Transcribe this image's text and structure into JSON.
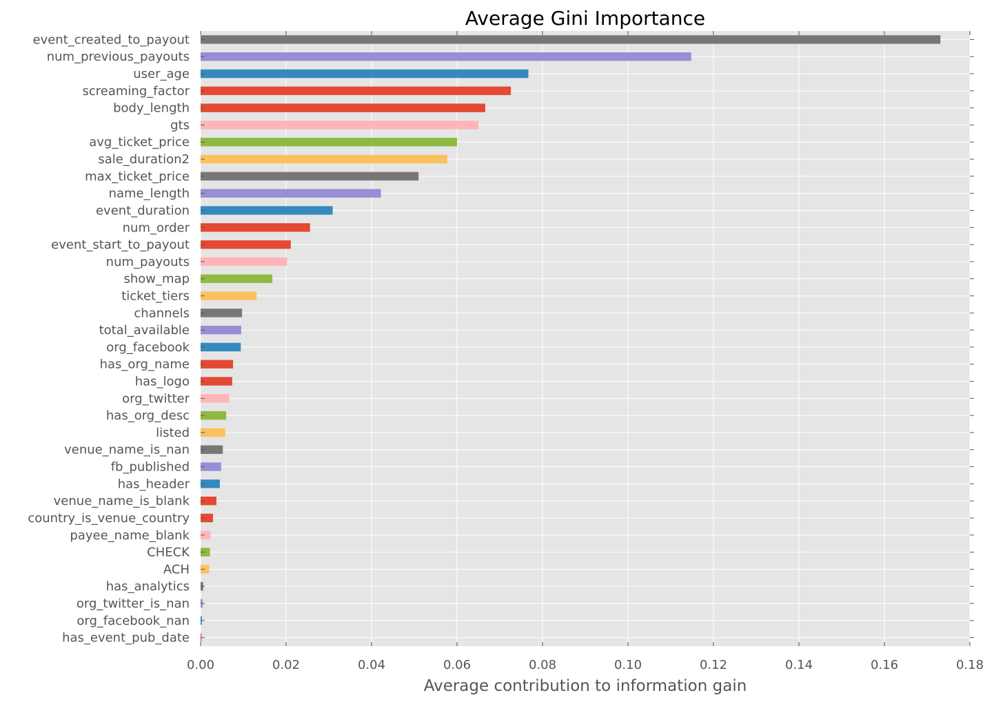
{
  "chart_data": {
    "type": "bar",
    "orientation": "horizontal",
    "title": "Average Gini Importance",
    "xlabel": "Average contribution to information gain",
    "ylabel": "",
    "xlim": [
      0,
      0.18
    ],
    "xticks": [
      0.0,
      0.02,
      0.04,
      0.06,
      0.08,
      0.1,
      0.12,
      0.14,
      0.16,
      0.18
    ],
    "xtick_labels": [
      "0.00",
      "0.02",
      "0.04",
      "0.06",
      "0.08",
      "0.10",
      "0.12",
      "0.14",
      "0.16",
      "0.18"
    ],
    "grid": true,
    "legend": "none",
    "background_color": "#e5e5e5",
    "grid_color": "#ffffff",
    "palette": [
      "#e24a33",
      "#348abd",
      "#988ed5",
      "#777777",
      "#fbc15e",
      "#8eba42",
      "#ffb5b8"
    ],
    "bars": [
      {
        "label": "event_created_to_payout",
        "value": 0.1731,
        "color": "#777777"
      },
      {
        "label": "num_previous_payouts",
        "value": 0.1148,
        "color": "#988ed5"
      },
      {
        "label": "user_age",
        "value": 0.0767,
        "color": "#348abd"
      },
      {
        "label": "screaming_factor",
        "value": 0.0726,
        "color": "#e24a33"
      },
      {
        "label": "body_length",
        "value": 0.0666,
        "color": "#e24a33"
      },
      {
        "label": "gts",
        "value": 0.065,
        "color": "#ffb5b8"
      },
      {
        "label": "avg_ticket_price",
        "value": 0.06,
        "color": "#8eba42"
      },
      {
        "label": "sale_duration2",
        "value": 0.0577,
        "color": "#fbc15e"
      },
      {
        "label": "max_ticket_price",
        "value": 0.051,
        "color": "#777777"
      },
      {
        "label": "name_length",
        "value": 0.0422,
        "color": "#988ed5"
      },
      {
        "label": "event_duration",
        "value": 0.0309,
        "color": "#348abd"
      },
      {
        "label": "num_order",
        "value": 0.0256,
        "color": "#e24a33"
      },
      {
        "label": "event_start_to_payout",
        "value": 0.0211,
        "color": "#e24a33"
      },
      {
        "label": "num_payouts",
        "value": 0.0202,
        "color": "#ffb5b8"
      },
      {
        "label": "show_map",
        "value": 0.0168,
        "color": "#8eba42"
      },
      {
        "label": "ticket_tiers",
        "value": 0.0131,
        "color": "#fbc15e"
      },
      {
        "label": "channels",
        "value": 0.0097,
        "color": "#777777"
      },
      {
        "label": "total_available",
        "value": 0.0095,
        "color": "#988ed5"
      },
      {
        "label": "org_facebook",
        "value": 0.0094,
        "color": "#348abd"
      },
      {
        "label": "has_org_name",
        "value": 0.0076,
        "color": "#e24a33"
      },
      {
        "label": "has_logo",
        "value": 0.0074,
        "color": "#e24a33"
      },
      {
        "label": "org_twitter",
        "value": 0.0067,
        "color": "#ffb5b8"
      },
      {
        "label": "has_org_desc",
        "value": 0.006,
        "color": "#8eba42"
      },
      {
        "label": "listed",
        "value": 0.0058,
        "color": "#fbc15e"
      },
      {
        "label": "venue_name_is_nan",
        "value": 0.0052,
        "color": "#777777"
      },
      {
        "label": "fb_published",
        "value": 0.0048,
        "color": "#988ed5"
      },
      {
        "label": "has_header",
        "value": 0.0045,
        "color": "#348abd"
      },
      {
        "label": "venue_name_is_blank",
        "value": 0.0037,
        "color": "#e24a33"
      },
      {
        "label": "country_is_venue_country",
        "value": 0.0029,
        "color": "#e24a33"
      },
      {
        "label": "payee_name_blank",
        "value": 0.0023,
        "color": "#ffb5b8"
      },
      {
        "label": "CHECK",
        "value": 0.0022,
        "color": "#8eba42"
      },
      {
        "label": "ACH",
        "value": 0.002,
        "color": "#fbc15e"
      },
      {
        "label": "has_analytics",
        "value": 0.0006,
        "color": "#777777"
      },
      {
        "label": "org_twitter_is_nan",
        "value": 0.0005,
        "color": "#988ed5"
      },
      {
        "label": "org_facebook_nan",
        "value": 0.0003,
        "color": "#348abd"
      },
      {
        "label": "has_event_pub_date",
        "value": 0.0002,
        "color": "#e24a33"
      }
    ]
  }
}
